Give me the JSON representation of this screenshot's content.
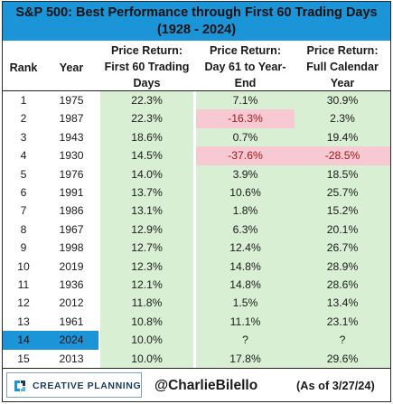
{
  "title": {
    "line1": "S&P 500: Best Performance through First 60 Trading Days",
    "line2": "(1928 - 2024)"
  },
  "headers": {
    "rank": "Rank",
    "year": "Year",
    "col1": [
      "Price Return:",
      "First 60 Trading",
      "Days"
    ],
    "col2": [
      "Price Return:",
      "Day 61 to Year-",
      "End"
    ],
    "col3": [
      "Price Return:",
      "Full Calendar",
      "Year"
    ]
  },
  "colors": {
    "accent": "#1c95d8",
    "positive_fill": "#d9efd4",
    "negative_fill": "#f7c9d2",
    "negative_text": "#a01818"
  },
  "chart_data": {
    "type": "table",
    "title": "S&P 500: Best Performance through First 60 Trading Days (1928 - 2024)",
    "columns": [
      "Rank",
      "Year",
      "Price Return: First 60 Trading Days",
      "Price Return: Day 61 to Year-End",
      "Price Return: Full Calendar Year"
    ],
    "rows": [
      {
        "rank": "1",
        "year": "1975",
        "first60": "22.3%",
        "rest": "7.1%",
        "full": "30.9%"
      },
      {
        "rank": "2",
        "year": "1987",
        "first60": "22.3%",
        "rest": "-16.3%",
        "full": "2.3%"
      },
      {
        "rank": "3",
        "year": "1943",
        "first60": "18.6%",
        "rest": "0.7%",
        "full": "19.4%"
      },
      {
        "rank": "4",
        "year": "1930",
        "first60": "14.5%",
        "rest": "-37.6%",
        "full": "-28.5%"
      },
      {
        "rank": "5",
        "year": "1976",
        "first60": "14.0%",
        "rest": "3.9%",
        "full": "18.5%"
      },
      {
        "rank": "6",
        "year": "1991",
        "first60": "13.7%",
        "rest": "10.6%",
        "full": "25.7%"
      },
      {
        "rank": "7",
        "year": "1986",
        "first60": "13.1%",
        "rest": "1.8%",
        "full": "15.2%"
      },
      {
        "rank": "8",
        "year": "1967",
        "first60": "12.9%",
        "rest": "6.3%",
        "full": "20.1%"
      },
      {
        "rank": "9",
        "year": "1998",
        "first60": "12.7%",
        "rest": "12.4%",
        "full": "26.7%"
      },
      {
        "rank": "10",
        "year": "2019",
        "first60": "12.3%",
        "rest": "14.8%",
        "full": "28.9%"
      },
      {
        "rank": "11",
        "year": "1936",
        "first60": "12.1%",
        "rest": "14.8%",
        "full": "28.6%"
      },
      {
        "rank": "12",
        "year": "2012",
        "first60": "11.8%",
        "rest": "1.5%",
        "full": "13.4%"
      },
      {
        "rank": "13",
        "year": "1961",
        "first60": "10.8%",
        "rest": "11.1%",
        "full": "23.1%"
      },
      {
        "rank": "14",
        "year": "2024",
        "first60": "10.0%",
        "rest": "?",
        "full": "?",
        "highlight": true
      },
      {
        "rank": "15",
        "year": "2013",
        "first60": "10.0%",
        "rest": "17.8%",
        "full": "29.6%"
      }
    ]
  },
  "footer": {
    "logo_text": "CREATIVE PLANNING",
    "logo_icon": "creative-planning-logo-icon",
    "handle": "@CharlieBilello",
    "as_of": "(As of 3/27/24)"
  }
}
